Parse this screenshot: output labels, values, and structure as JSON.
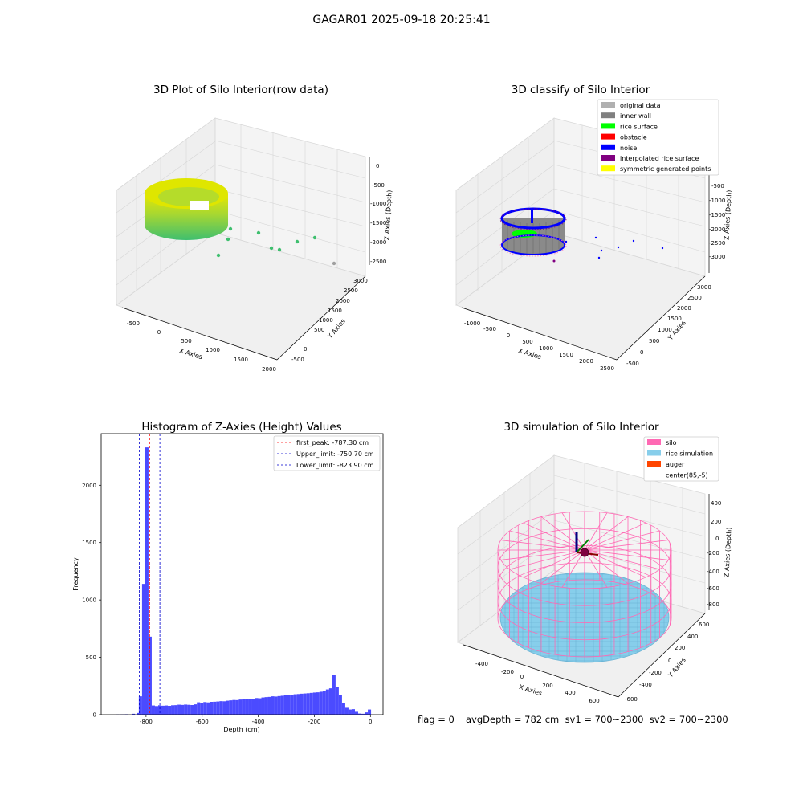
{
  "suptitle": "GAGAR01 2025-09-18 20:25:41",
  "colors": {
    "hist_bar": "#4b4bff",
    "peak_line": "#ff0000",
    "limit_line": "#0000cc",
    "pane": "#f2f2f2",
    "silo": "#ff69b4",
    "rice": "#87ceeb",
    "auger": "#ff4500",
    "original": "#b0b0b0",
    "inner_wall": "#808080",
    "rice_surface": "#00ff00",
    "obstacle": "#ff0000",
    "noise": "#0000ff",
    "interp": "#800080",
    "symmetric": "#ffff00"
  },
  "bottom_info": {
    "flag": "flag = 0",
    "stats": "avgDepth = 782 cm  sv1 = 700~2300  sv2 = 700~2300"
  },
  "chart_data": [
    {
      "type": "scatter",
      "title": "3D Plot of Silo Interior(row data)",
      "xlabel": "X Axies",
      "ylabel": "Y Axies",
      "zlabel": "Z Axies (Depth)",
      "x_ticks": [
        "-500",
        "0",
        "500",
        "1000",
        "1500",
        "2000"
      ],
      "y_ticks": [
        "-500",
        "0",
        "500",
        "1000",
        "1500",
        "2000",
        "2500",
        "3000"
      ],
      "z_ticks": [
        "0",
        "-500",
        "-1000",
        "-1500",
        "-2000",
        "-2500"
      ]
    },
    {
      "type": "scatter",
      "title": "3D classify of Silo Interior",
      "xlabel": "X Axies",
      "ylabel": "Y Axies",
      "zlabel": "Z Axies (Depth)",
      "x_ticks": [
        "-1000",
        "-500",
        "0",
        "500",
        "1000",
        "1500",
        "2000",
        "2500"
      ],
      "y_ticks": [
        "-500",
        "0",
        "500",
        "1000",
        "1500",
        "2000",
        "2500",
        "3000"
      ],
      "z_ticks": [
        "0",
        "-500",
        "-1000",
        "-1500",
        "-2000",
        "-2500",
        "-3000"
      ],
      "legend": [
        {
          "label": "original data",
          "color": "#b0b0b0"
        },
        {
          "label": "inner wall",
          "color": "#808080"
        },
        {
          "label": "rice surface",
          "color": "#00ff00"
        },
        {
          "label": "obstacle",
          "color": "#ff0000"
        },
        {
          "label": "noise",
          "color": "#0000ff"
        },
        {
          "label": "interpolated rice surface",
          "color": "#800080"
        },
        {
          "label": "symmetric generated points",
          "color": "#ffff00"
        }
      ]
    },
    {
      "type": "bar",
      "title": "Histogram of Z-Axies (Height) Values",
      "xlabel": "Depth (cm)",
      "ylabel": "Frequency",
      "xlim": [
        -960,
        45
      ],
      "ylim": [
        0,
        2450
      ],
      "x_ticks": [
        -800,
        -600,
        -400,
        -200,
        0
      ],
      "y_ticks": [
        0,
        500,
        1000,
        1500,
        2000
      ],
      "bin_width": 11.5,
      "bins": [
        [
          -902,
          2
        ],
        [
          -885,
          3
        ],
        [
          -870,
          4
        ],
        [
          -845,
          8
        ],
        [
          -828,
          15
        ],
        [
          -820,
          160
        ],
        [
          -808.5,
          1140
        ],
        [
          -797,
          2330
        ],
        [
          -785.5,
          680
        ],
        [
          -774,
          80
        ],
        [
          -762.5,
          75
        ],
        [
          -751,
          82
        ],
        [
          -739.5,
          78
        ],
        [
          -728,
          80
        ],
        [
          -716.5,
          77
        ],
        [
          -705,
          82
        ],
        [
          -693.5,
          83
        ],
        [
          -682,
          87
        ],
        [
          -670.5,
          85
        ],
        [
          -659,
          88
        ],
        [
          -647.5,
          86
        ],
        [
          -636,
          84
        ],
        [
          -624.5,
          90
        ],
        [
          -613,
          108
        ],
        [
          -601.5,
          105
        ],
        [
          -590,
          110
        ],
        [
          -578.5,
          107
        ],
        [
          -567,
          112
        ],
        [
          -555.5,
          113
        ],
        [
          -544,
          115
        ],
        [
          -532.5,
          118
        ],
        [
          -521,
          117
        ],
        [
          -509.5,
          122
        ],
        [
          -498,
          125
        ],
        [
          -486.5,
          128
        ],
        [
          -475,
          127
        ],
        [
          -463.5,
          132
        ],
        [
          -452,
          135
        ],
        [
          -440.5,
          133
        ],
        [
          -429,
          137
        ],
        [
          -417.5,
          140
        ],
        [
          -406,
          145
        ],
        [
          -394.5,
          143
        ],
        [
          -383,
          150
        ],
        [
          -371.5,
          153
        ],
        [
          -360,
          155
        ],
        [
          -348.5,
          160
        ],
        [
          -337,
          158
        ],
        [
          -325.5,
          162
        ],
        [
          -314,
          165
        ],
        [
          -302.5,
          170
        ],
        [
          -291,
          172
        ],
        [
          -279.5,
          175
        ],
        [
          -268,
          178
        ],
        [
          -256.5,
          180
        ],
        [
          -245,
          183
        ],
        [
          -233.5,
          185
        ],
        [
          -222,
          187
        ],
        [
          -210.5,
          190
        ],
        [
          -199,
          193
        ],
        [
          -187.5,
          195
        ],
        [
          -176,
          200
        ],
        [
          -164.5,
          205
        ],
        [
          -153,
          220
        ],
        [
          -141.5,
          230
        ],
        [
          -130,
          350
        ],
        [
          -118.5,
          240
        ],
        [
          -107,
          170
        ],
        [
          -95.5,
          100
        ],
        [
          -84,
          60
        ],
        [
          -72.5,
          45
        ],
        [
          -61,
          48
        ],
        [
          -49.5,
          25
        ],
        [
          -38,
          10
        ],
        [
          -26.5,
          8
        ],
        [
          -15,
          20
        ],
        [
          -3.5,
          45
        ]
      ],
      "vlines": [
        {
          "label": "first_peak: -787.30 cm",
          "value": -787.3,
          "color": "#ff0000"
        },
        {
          "label": "Upper_limit: -750.70 cm",
          "value": -750.7,
          "color": "#0000cc"
        },
        {
          "label": "Lower_limit: -823.90 cm",
          "value": -823.9,
          "color": "#0000cc"
        }
      ]
    },
    {
      "type": "scatter",
      "title": "3D simulation of Silo Interior",
      "xlabel": "X Axies",
      "ylabel": "Y Axies",
      "zlabel": "Z Axies (Depth)",
      "x_ticks": [
        "-400",
        "-200",
        "0",
        "200",
        "400",
        "600"
      ],
      "y_ticks": [
        "-600",
        "-400",
        "-200",
        "0",
        "200",
        "400",
        "600"
      ],
      "z_ticks": [
        "400",
        "200",
        "0",
        "-200",
        "-400",
        "-600",
        "-800"
      ],
      "legend": [
        {
          "label": "silo",
          "color": "#ff69b4"
        },
        {
          "label": "rice simulation",
          "color": "#87ceeb"
        },
        {
          "label": "auger",
          "color": "#ff4500"
        },
        {
          "label": "center(85,-5)",
          "color": ""
        }
      ]
    }
  ]
}
